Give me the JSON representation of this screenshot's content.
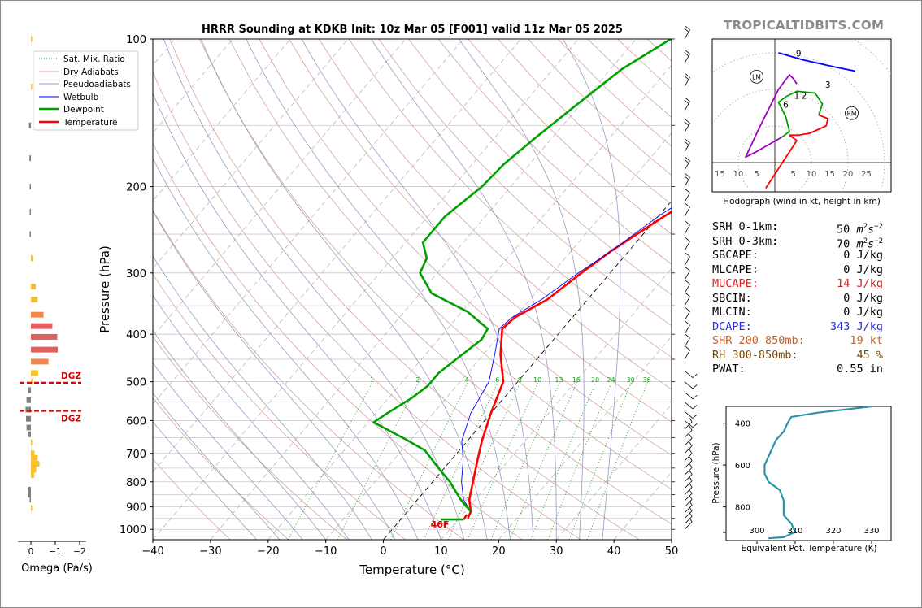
{
  "brand": "TROPICALTIDBITS.COM",
  "chart_data": [
    {
      "type": "line",
      "title": "HRRR Sounding at KDKB Init: 10z Mar 05 [F001] valid 11z Mar 05 2025",
      "xlabel": "Temperature (°C)",
      "ylabel": "Pressure (hPa)",
      "xlim": [
        -40,
        50
      ],
      "ylim": [
        1050,
        100
      ],
      "yscale": "log",
      "x_ticks": [
        -40,
        -30,
        -20,
        -10,
        0,
        10,
        20,
        30,
        40,
        50
      ],
      "x_tick_labels": [
        "−40",
        "−30",
        "−20",
        "−10",
        "0",
        "10",
        "20",
        "30",
        "40",
        "50"
      ],
      "y_ticks": [
        100,
        200,
        300,
        400,
        500,
        600,
        700,
        800,
        900,
        1000
      ],
      "legend_position": "top-left",
      "legend": [
        "Sat. Mix. Ratio",
        "Dry Adiabats",
        "Pseudoadiabats",
        "Wetbulb",
        "Dewpoint",
        "Temperature"
      ],
      "series": [
        {
          "name": "Temperature",
          "color": "#ff0000",
          "points": [
            [
              11.5,
              950
            ],
            [
              11,
              920
            ],
            [
              9,
              870
            ],
            [
              7,
              800
            ],
            [
              4.5,
              720
            ],
            [
              2.5,
              660
            ],
            [
              0,
              580
            ],
            [
              -2.5,
              500
            ],
            [
              -7,
              440
            ],
            [
              -10.5,
              390
            ],
            [
              -10,
              370
            ],
            [
              -7,
              340
            ],
            [
              -5,
              300
            ],
            [
              -3,
              270
            ],
            [
              1,
              230
            ],
            [
              5,
              200
            ],
            [
              7,
              180
            ],
            [
              8,
              150
            ],
            [
              7.5,
              125
            ],
            [
              7,
              110
            ],
            [
              8,
              100
            ]
          ]
        },
        {
          "name": "Wetbulb",
          "color": "#0000ff",
          "points": [
            [
              11,
              920
            ],
            [
              8,
              870
            ],
            [
              5,
              800
            ],
            [
              2,
              720
            ],
            [
              -1,
              660
            ],
            [
              -3.5,
              580
            ],
            [
              -5,
              500
            ],
            [
              -8,
              440
            ],
            [
              -11,
              390
            ],
            [
              -10.5,
              370
            ],
            [
              -8,
              340
            ],
            [
              -5.5,
              300
            ],
            [
              -3,
              270
            ],
            [
              0,
              230
            ],
            [
              3.5,
              200
            ],
            [
              6,
              180
            ],
            [
              6.5,
              150
            ],
            [
              6.5,
              125
            ],
            [
              6.5,
              110
            ],
            [
              7,
              100
            ]
          ]
        },
        {
          "name": "Dewpoint",
          "color": "#00a000",
          "points": [
            [
              11,
              920
            ],
            [
              7.5,
              870
            ],
            [
              3,
              800
            ],
            [
              -1,
              750
            ],
            [
              -6,
              690
            ],
            [
              -11,
              655
            ],
            [
              -19,
              605
            ],
            [
              -18,
              580
            ],
            [
              -16,
              540
            ],
            [
              -15,
              510
            ],
            [
              -15,
              480
            ],
            [
              -14,
              450
            ],
            [
              -12.5,
              410
            ],
            [
              -13,
              390
            ],
            [
              -19,
              360
            ],
            [
              -28,
              330
            ],
            [
              -33,
              300
            ],
            [
              -34,
              280
            ],
            [
              -37,
              260
            ],
            [
              -37,
              230
            ],
            [
              -35,
              200
            ],
            [
              -34.5,
              180
            ],
            [
              -33,
              160
            ],
            [
              -30.5,
              135
            ],
            [
              -28,
              115
            ],
            [
              -24,
              100
            ]
          ]
        }
      ],
      "surface": {
        "temp": 11.5,
        "dewpoint": 9,
        "pressure": 955,
        "label": "46F"
      },
      "mixing_ratio_labels": [
        "1",
        "2",
        "4",
        "6",
        "8",
        "10",
        "13",
        "16",
        "20",
        "24",
        "30",
        "36"
      ]
    },
    {
      "type": "bar",
      "xlabel": "Omega (Pa/s)",
      "x_ticks": [
        0,
        -1,
        -2
      ],
      "x_tick_labels": [
        "0",
        "−1",
        "−2"
      ],
      "dgz_label": "DGZ",
      "dgz_levels": [
        530,
        605
      ],
      "bars": [
        [
          100,
          -0.05
        ],
        [
          125,
          -0.05
        ],
        [
          150,
          0.08
        ],
        [
          175,
          0.06
        ],
        [
          200,
          0.05
        ],
        [
          225,
          0.05
        ],
        [
          250,
          0.05
        ],
        [
          280,
          -0.08
        ],
        [
          320,
          -0.2
        ],
        [
          340,
          -0.28
        ],
        [
          365,
          -0.52
        ],
        [
          385,
          -0.88
        ],
        [
          405,
          -1.08
        ],
        [
          430,
          -1.1
        ],
        [
          455,
          -0.72
        ],
        [
          480,
          -0.3
        ],
        [
          500,
          -0.08
        ],
        [
          520,
          0.1
        ],
        [
          545,
          0.18
        ],
        [
          570,
          0.22
        ],
        [
          595,
          0.2
        ],
        [
          620,
          0.18
        ],
        [
          640,
          0.1
        ],
        [
          665,
          -0.05
        ],
        [
          700,
          -0.15
        ],
        [
          715,
          -0.28
        ],
        [
          735,
          -0.35
        ],
        [
          755,
          -0.22
        ],
        [
          775,
          -0.14
        ],
        [
          830,
          0.1
        ],
        [
          850,
          0.12
        ],
        [
          870,
          0.05
        ],
        [
          905,
          -0.05
        ]
      ]
    },
    {
      "type": "line",
      "title": "Hodograph (wind in kt, height in km)",
      "x_tick_labels": [
        "15",
        "10",
        "5",
        "5",
        "10",
        "15",
        "20",
        "25"
      ],
      "markers": [
        "LM",
        "RM"
      ],
      "height_labels": [
        "9",
        "3",
        "1",
        "2",
        "6"
      ],
      "series": [
        {
          "name": "0-1 km",
          "color": "#ff0000",
          "points": [
            [
              -2.5,
              -7
            ],
            [
              6,
              6
            ],
            [
              4,
              7.5
            ]
          ]
        },
        {
          "name": "1-3 km",
          "color": "#ff0000",
          "points": [
            [
              4,
              7.5
            ],
            [
              6.5,
              7.5
            ],
            [
              9.5,
              8
            ],
            [
              14,
              10
            ],
            [
              14.5,
              12
            ],
            [
              12,
              13
            ]
          ]
        },
        {
          "name": "3-6 km",
          "color": "#00a000",
          "points": [
            [
              12,
              13
            ],
            [
              13,
              16
            ],
            [
              11,
              19
            ],
            [
              6,
              19.5
            ],
            [
              3,
              18
            ],
            [
              1,
              16.5
            ],
            [
              3,
              12.5
            ],
            [
              4,
              8.5
            ],
            [
              2,
              7
            ]
          ]
        },
        {
          "name": "6-9 km",
          "color": "#a000c0",
          "points": [
            [
              2,
              7
            ],
            [
              -5,
              3
            ],
            [
              -8,
              1.5
            ],
            [
              -4,
              10
            ],
            [
              1,
              20
            ],
            [
              4,
              24
            ],
            [
              5,
              23
            ],
            [
              6,
              21.5
            ]
          ]
        },
        {
          "name": "9-12 km",
          "color": "#0000ff",
          "points": [
            [
              1,
              30
            ],
            [
              8,
              28
            ],
            [
              17,
              26
            ],
            [
              22,
              25
            ]
          ]
        }
      ]
    },
    {
      "type": "line",
      "xlabel": "Equivalent Pot. Temperature (K)",
      "ylabel": "Pressure (hPa)",
      "x_ticks": [
        300,
        310,
        320,
        330
      ],
      "y_ticks": [
        400,
        600,
        800
      ],
      "series": [
        {
          "name": "Equivalent Pot. Temperature",
          "color": "#2b95a5",
          "points": [
            [
              330,
              320
            ],
            [
              316,
              350
            ],
            [
              309,
              370
            ],
            [
              308,
              400
            ],
            [
              307,
              440
            ],
            [
              305,
              480
            ],
            [
              304,
              520
            ],
            [
              303,
              560
            ],
            [
              302,
              600
            ],
            [
              302,
              640
            ],
            [
              303,
              680
            ],
            [
              306,
              720
            ],
            [
              307,
              770
            ],
            [
              307,
              840
            ],
            [
              309,
              880
            ],
            [
              310,
              920
            ],
            [
              307,
              945
            ],
            [
              303,
              950
            ]
          ]
        }
      ]
    }
  ],
  "stats": [
    {
      "label": "SRH 0-1km:",
      "value": "50",
      "unit": "m2s-2",
      "color": "#000000"
    },
    {
      "label": "SRH 0-3km:",
      "value": "70",
      "unit": "m2s-2",
      "color": "#000000"
    },
    {
      "label": "SBCAPE:",
      "value": "0 J/kg",
      "color": "#000000"
    },
    {
      "label": "MLCAPE:",
      "value": "0 J/kg",
      "color": "#000000"
    },
    {
      "label": "MUCAPE:",
      "value": "14 J/kg",
      "color": "#d62020"
    },
    {
      "label": "SBCIN:",
      "value": "0 J/kg",
      "color": "#000000"
    },
    {
      "label": "MLCIN:",
      "value": "0 J/kg",
      "color": "#000000"
    },
    {
      "label": "DCAPE:",
      "value": "343 J/kg",
      "color": "#2a2ad6"
    },
    {
      "label": "SHR 200-850mb:",
      "value": "19 kt",
      "color": "#c8602a"
    },
    {
      "label": "RH 300-850mb:",
      "value": "45 %",
      "color": "#7a4a08"
    },
    {
      "label": "PWAT:",
      "value": "0.55 in",
      "color": "#000000"
    }
  ],
  "colors": {
    "temperature": "#ff0000",
    "dewpoint": "#00a000",
    "wetbulb": "#0000ff",
    "dgz": "#e00000",
    "theta_e": "#2b95a5",
    "brand": "#8a8a8a"
  }
}
